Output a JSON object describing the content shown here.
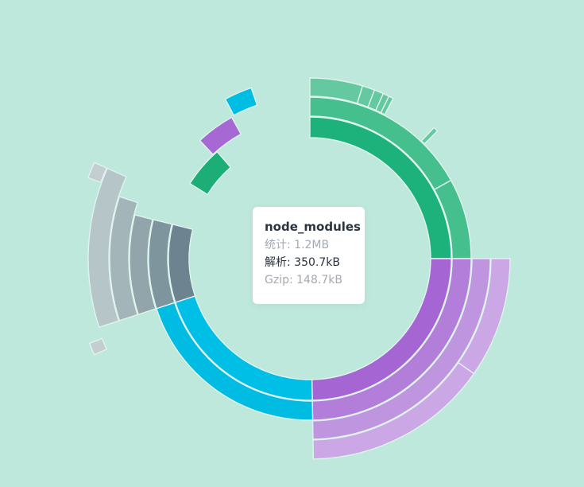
{
  "tooltip": {
    "title": "node_modules",
    "stat": "统计: 1.2MB",
    "parsed": "解析: 350.7kB",
    "gzip": "Gzip: 148.7kB"
  },
  "chart_data": {
    "type": "sunburst",
    "title": "",
    "root": {
      "name": "node_modules",
      "stat_size": "1.2MB",
      "parsed_size": "350.7kB",
      "gzip_size": "148.7kB"
    },
    "palette": {
      "green": [
        "#1db27b",
        "#46bf8e",
        "#64c9a0",
        "#83d4b4"
      ],
      "purple": [
        "#a566d4",
        "#b27ed9",
        "#bf95df",
        "#cba8e5"
      ],
      "blue": [
        "#00bfe6",
        "#00bbe2"
      ],
      "slate": [
        "#6d8390",
        "#7f959e",
        "#91a5ab",
        "#a3b5b9",
        "#b6c5c8",
        "#c4ced1"
      ],
      "violet": "#a669d3",
      "cyan": "#00bde4",
      "teal": "#1dae77"
    },
    "segments": [
      {
        "group": "green",
        "depth": 1,
        "start": 0,
        "end": 90
      },
      {
        "group": "green",
        "depth": 2,
        "start": 0,
        "end": 61
      },
      {
        "group": "green",
        "depth": 2,
        "start": 61,
        "end": 90
      },
      {
        "group": "green",
        "depth": 3,
        "start": 0,
        "end": 17
      },
      {
        "group": "green",
        "depth": 3,
        "start": 17,
        "end": 21
      },
      {
        "group": "green",
        "depth": 3,
        "start": 21,
        "end": 24
      },
      {
        "group": "green",
        "depth": 3,
        "start": 24,
        "end": 26
      },
      {
        "group": "green",
        "depth": 3,
        "start": 26,
        "end": 27.5
      },
      {
        "group": "green",
        "depth": 3,
        "start": 43.5,
        "end": 45
      },
      {
        "group": "purple",
        "depth": 1,
        "start": 90,
        "end": 179
      },
      {
        "group": "purple",
        "depth": 2,
        "start": 90,
        "end": 179
      },
      {
        "group": "purple",
        "depth": 3,
        "start": 90,
        "end": 179
      },
      {
        "group": "purple",
        "depth": 4,
        "start": 90,
        "end": 125
      },
      {
        "group": "purple",
        "depth": 4,
        "start": 125,
        "end": 179
      },
      {
        "group": "blue",
        "depth": 1,
        "start": 179,
        "end": 252
      },
      {
        "group": "blue",
        "depth": 2,
        "start": 179,
        "end": 252
      },
      {
        "group": "slate",
        "depth": 1,
        "start": 252,
        "end": 284
      },
      {
        "group": "slate",
        "depth": 2,
        "start": 252,
        "end": 284
      },
      {
        "group": "slate",
        "depth": 3,
        "start": 252,
        "end": 284
      },
      {
        "group": "slate",
        "depth": 4,
        "start": 252,
        "end": 288
      },
      {
        "group": "slate",
        "depth": 5,
        "start": 252,
        "end": 294
      },
      {
        "group": "slate",
        "depth": 6,
        "start": 246,
        "end": 249
      },
      {
        "group": "slate",
        "depth": 6,
        "start": 290,
        "end": 294
      },
      {
        "group": "teal",
        "depth": 1,
        "start": 302,
        "end": 319
      },
      {
        "group": "violet",
        "depth": 2,
        "start": 317,
        "end": 331
      },
      {
        "group": "cyan",
        "depth": 3,
        "start": 332,
        "end": 341
      }
    ]
  }
}
